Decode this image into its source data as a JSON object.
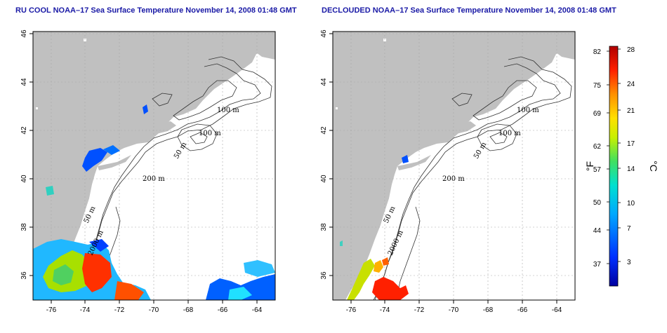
{
  "panels": [
    {
      "id": "left",
      "title": "RU COOL NOAA–17 Sea Surface Temperature November 14, 2008 01:48 GMT"
    },
    {
      "id": "right",
      "title": "DECLOUDED NOAA–17 Sea Surface Temperature November 14, 2008 01:48 GMT"
    }
  ],
  "axes": {
    "lon_ticks": [
      "-76",
      "-74",
      "-72",
      "-70",
      "-68",
      "-66",
      "-64"
    ],
    "lat_ticks": [
      "46",
      "44",
      "42",
      "40",
      "38",
      "36"
    ]
  },
  "contour_labels": [
    "100 m",
    "100 m",
    "50 m",
    "200 m",
    "50 m",
    "2000 m"
  ],
  "colorbar": {
    "fahrenheit_label": "°F",
    "celsius_label": "°C",
    "fahrenheit_ticks": [
      "82",
      "75",
      "69",
      "62",
      "57",
      "50",
      "44",
      "37"
    ],
    "celsius_ticks": [
      "28",
      "24",
      "21",
      "17",
      "14",
      "10",
      "7",
      "3"
    ]
  },
  "colors": {
    "land": "#c0c0c0",
    "ocean": "#ffffff",
    "title": "#1a1aa6",
    "grid": "#a8a8a8"
  }
}
